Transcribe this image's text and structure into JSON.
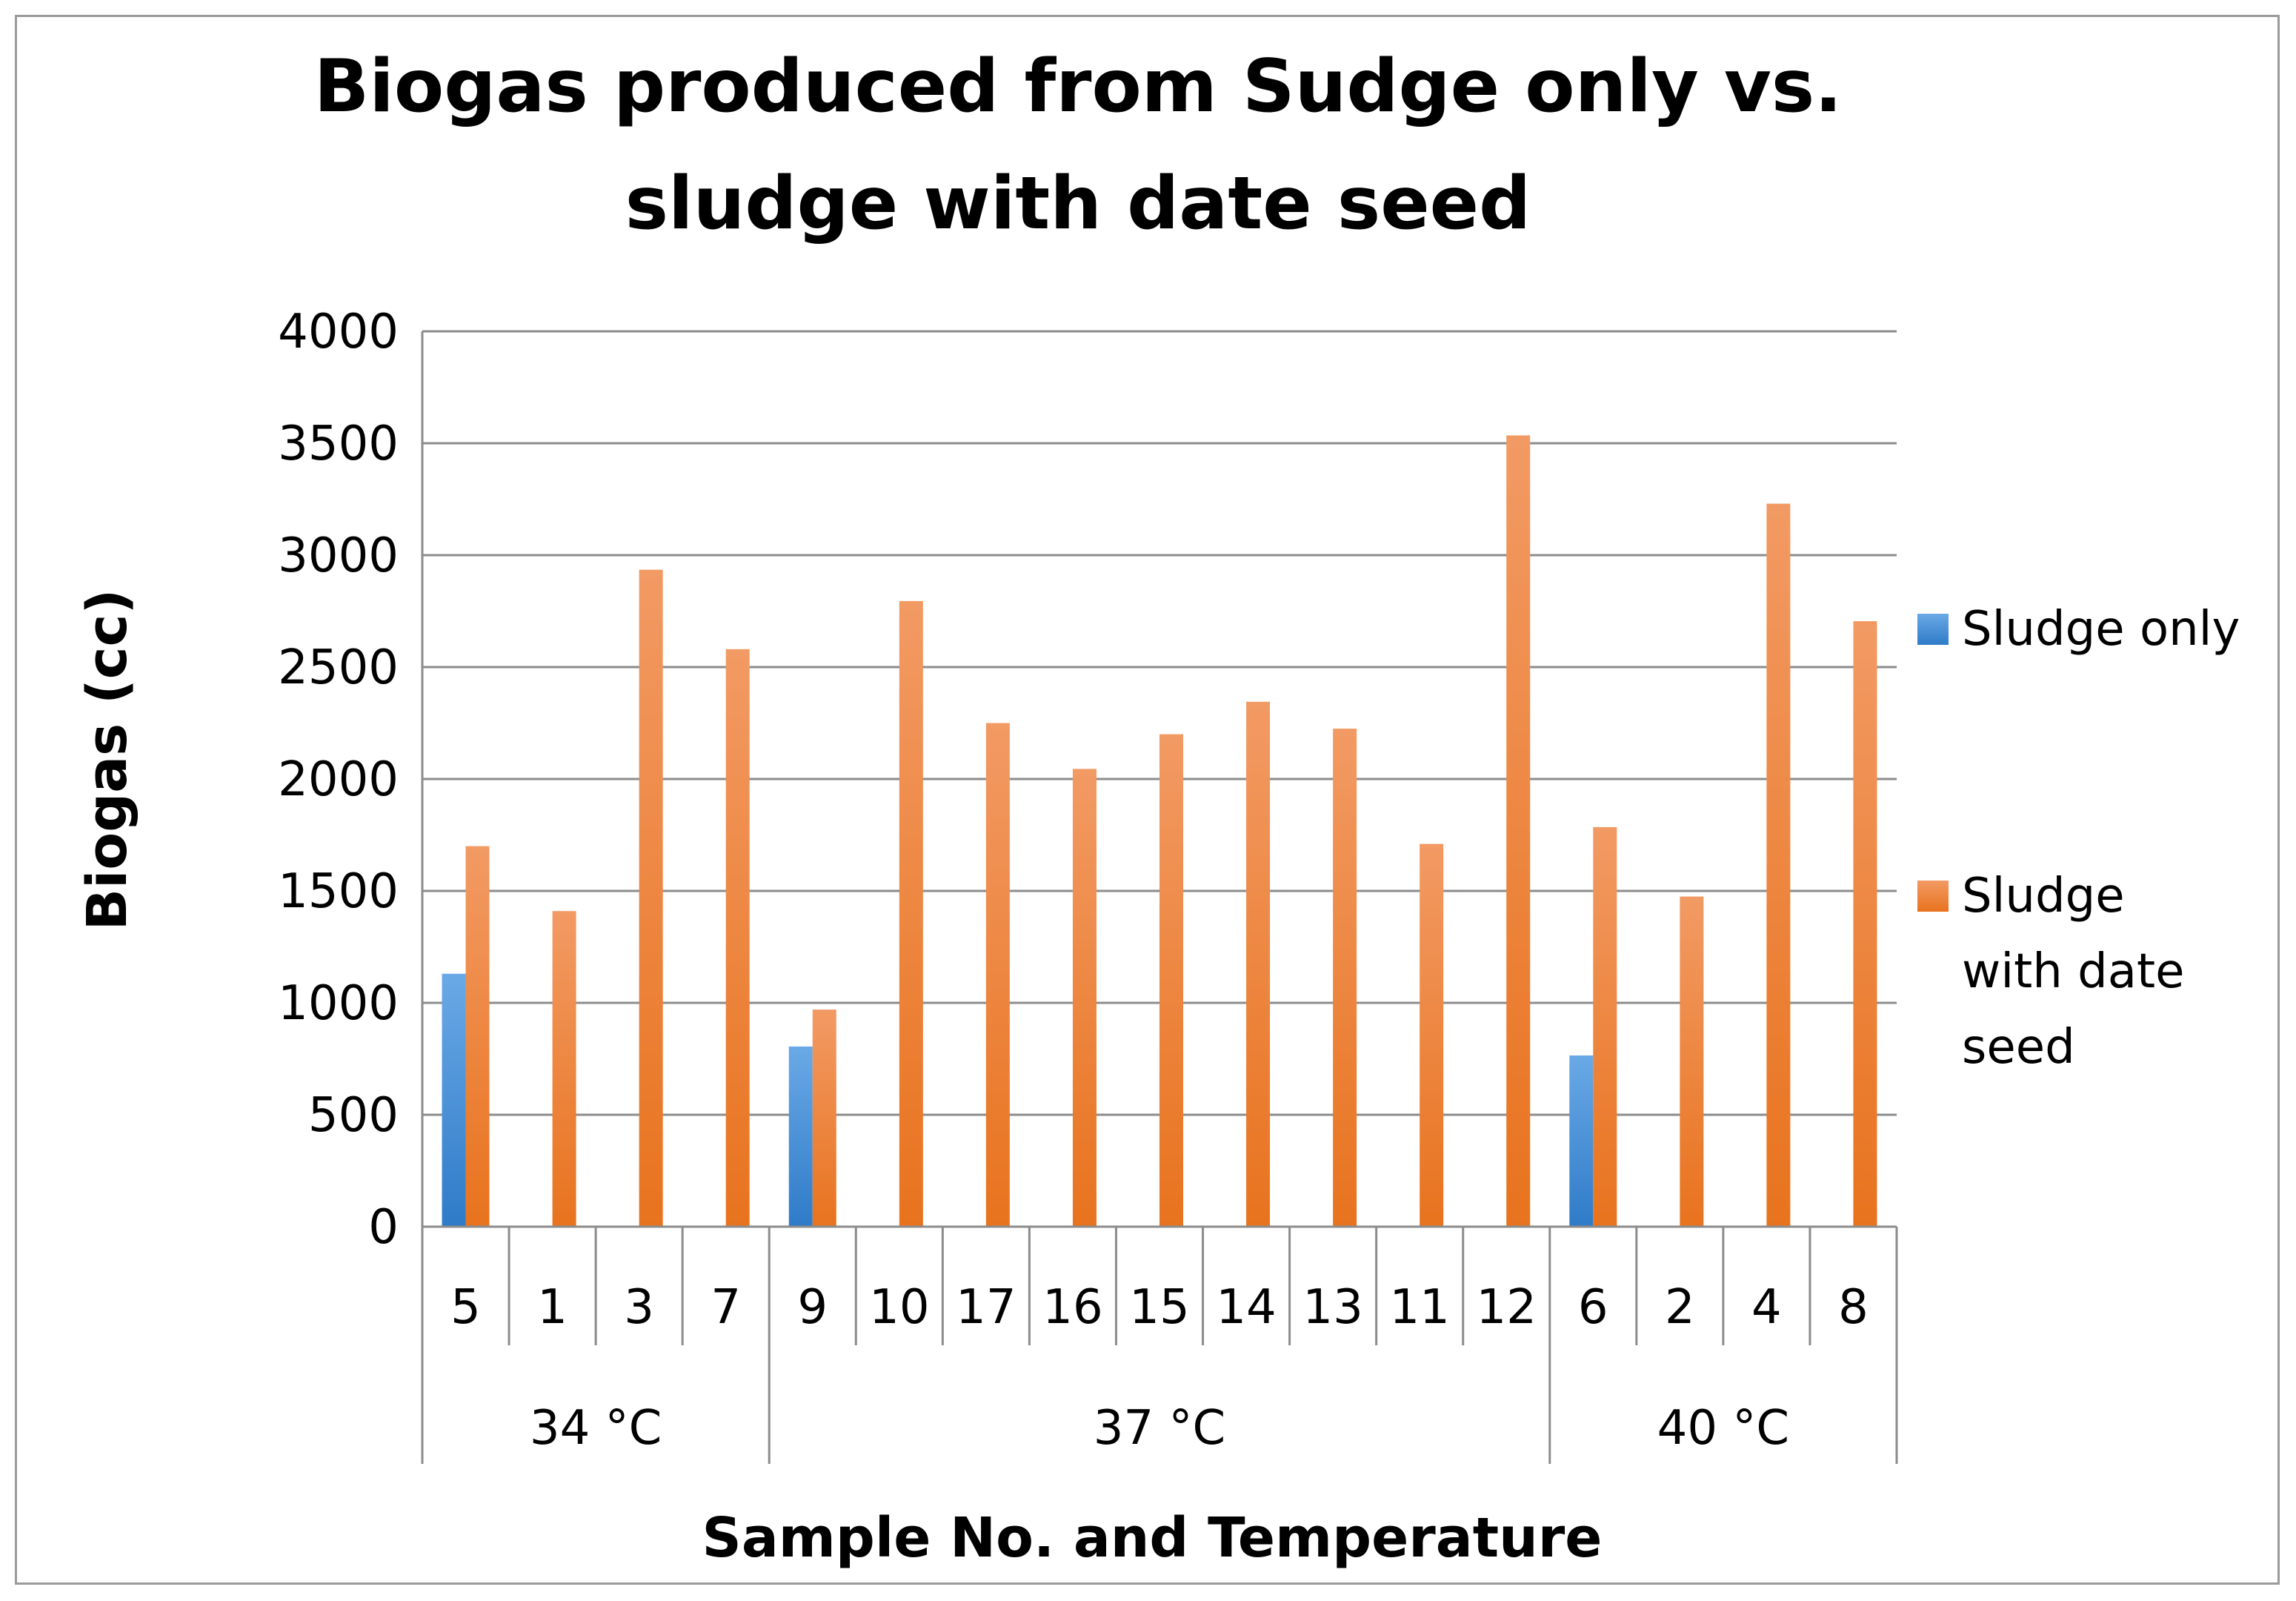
{
  "chart_data": {
    "type": "bar",
    "title_lines": [
      "Biogas produced from Sudge only vs.",
      "sludge with date seed"
    ],
    "xlabel": "Sample No. and Temperature",
    "ylabel": "Biogas (cc)",
    "ylim": [
      0,
      4000
    ],
    "yticks": [
      0,
      500,
      1000,
      1500,
      2000,
      2500,
      3000,
      3500,
      4000
    ],
    "grid": true,
    "legend_position": "right",
    "categories": [
      "5",
      "1",
      "3",
      "7",
      "9",
      "10",
      "17",
      "16",
      "15",
      "14",
      "13",
      "11",
      "12",
      "6",
      "2",
      "4",
      "8"
    ],
    "groups": [
      {
        "label": "34 °C",
        "count": 4
      },
      {
        "label": "37 °C",
        "count": 9
      },
      {
        "label": "40 °C",
        "count": 4
      }
    ],
    "series": [
      {
        "name": "Sludge only",
        "color": "#4a90d9",
        "values": [
          1130,
          null,
          null,
          null,
          805,
          null,
          null,
          null,
          null,
          null,
          null,
          null,
          null,
          765,
          null,
          null,
          null
        ]
      },
      {
        "name": "Sludge with date seed",
        "color": "#ed7d31",
        "values": [
          1700,
          1410,
          2935,
          2580,
          970,
          2795,
          2250,
          2045,
          2200,
          2345,
          2225,
          1710,
          3535,
          1785,
          1475,
          3230,
          2705
        ]
      }
    ],
    "legend_lines": [
      [
        "Sludge only"
      ],
      [
        "Sludge",
        "with date",
        "seed"
      ]
    ]
  }
}
